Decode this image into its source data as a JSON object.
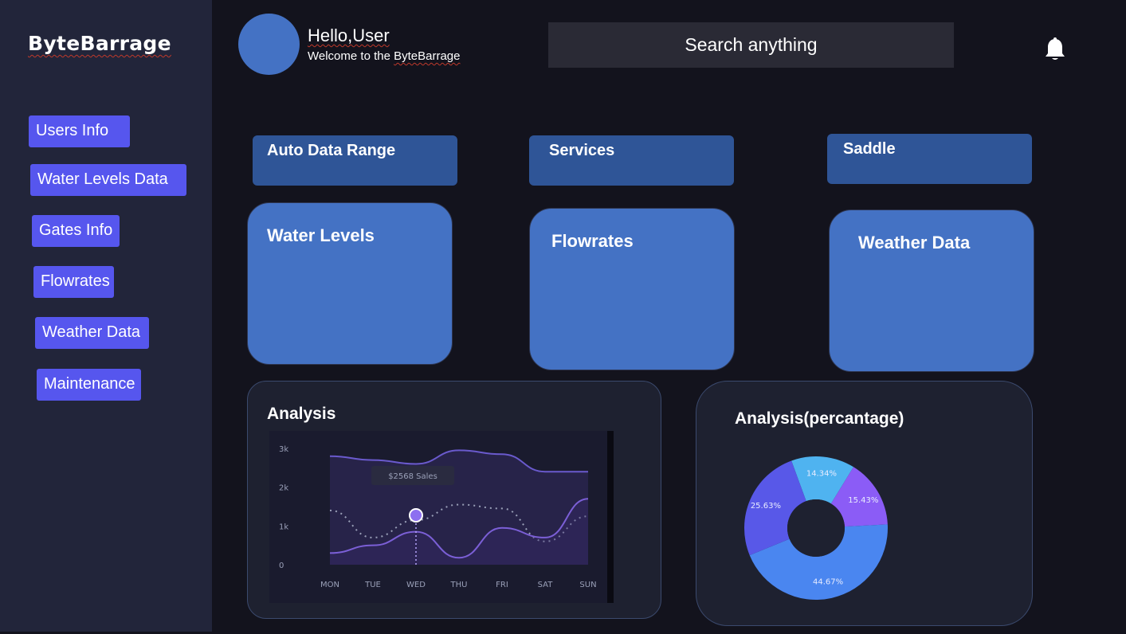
{
  "sidebar": {
    "brand": "ByteBarrage",
    "items": [
      {
        "label": "Users Info"
      },
      {
        "label": "Water Levels Data"
      },
      {
        "label": "Gates Info"
      },
      {
        "label": "Flowrates"
      },
      {
        "label": "Weather Data"
      },
      {
        "label": "Maintenance"
      }
    ]
  },
  "header": {
    "greeting": "Hello,User",
    "welcome_prefix": "Welcome to the ",
    "welcome_brand": "ByteBarrage",
    "search_placeholder": "Search anything",
    "notification_icon": "bell-icon"
  },
  "tabs": [
    {
      "label": "Auto Data Range"
    },
    {
      "label": "Services"
    },
    {
      "label": "Saddle"
    }
  ],
  "cards": [
    {
      "label": "Water Levels"
    },
    {
      "label": "Flowrates"
    },
    {
      "label": "Weather Data"
    }
  ],
  "colors": {
    "background": "#13131d",
    "sidebar": "#22253a",
    "nav_button": "#5656ee",
    "tab": "#2f5597",
    "card": "#4472c4"
  },
  "analysis": {
    "title": "Analysis",
    "chart_data": {
      "type": "line",
      "categories": [
        "MON",
        "TUE",
        "WED",
        "THU",
        "FRI",
        "SAT",
        "SUN"
      ],
      "y_ticks": [
        "0",
        "1k",
        "2k",
        "3k"
      ],
      "ylim": [
        0,
        3000
      ],
      "tooltip": "$2568 Sales",
      "highlight_category": "WED",
      "series": [
        {
          "style": "area-line",
          "color": "#6a5acd",
          "values": [
            2800,
            2700,
            2600,
            2950,
            2850,
            2400,
            2400
          ]
        },
        {
          "style": "dotted",
          "color": "#9aa0b8",
          "values": [
            1400,
            700,
            1150,
            1550,
            1450,
            600,
            1250
          ]
        },
        {
          "style": "line",
          "color": "#7b5fd6",
          "values": [
            300,
            500,
            850,
            180,
            950,
            700,
            1700
          ]
        }
      ]
    }
  },
  "percentage": {
    "title": "Analysis(percantage)",
    "chart_data": {
      "type": "pie",
      "donut": true,
      "slices": [
        {
          "label": "14.34%",
          "value": 14.34,
          "color": "#4fb3f0"
        },
        {
          "label": "15.43%",
          "value": 15.43,
          "color": "#8b5cf6"
        },
        {
          "label": "44.67%",
          "value": 44.67,
          "color": "#4a86f0"
        },
        {
          "label": "25.63%",
          "value": 25.63,
          "color": "#5858e8"
        }
      ]
    }
  }
}
